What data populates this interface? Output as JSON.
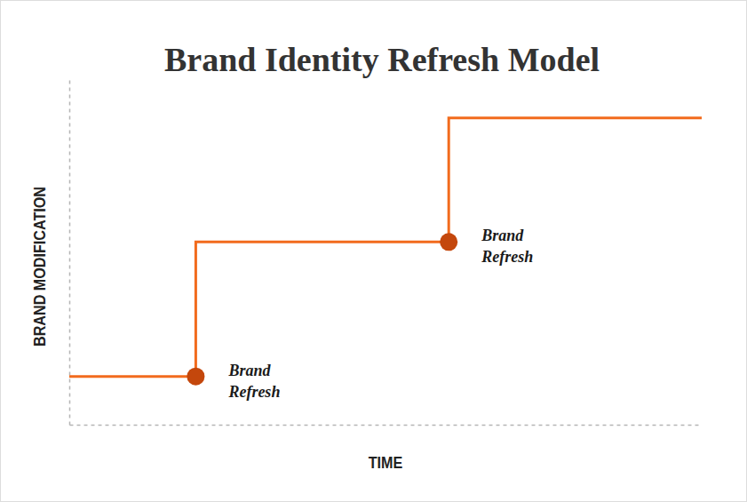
{
  "chart_data": {
    "type": "step",
    "title": "Brand Identity Refresh Model",
    "x_label": "TIME",
    "y_label": "BRAND MODIFICATION",
    "x": [
      0,
      2,
      6,
      10
    ],
    "values": [
      1.4,
      5.3,
      8.9,
      8.9
    ],
    "color": "#f26b1d",
    "xlim": [
      0,
      10
    ],
    "ylim": [
      0,
      10
    ],
    "tick_labels": false,
    "grid": false,
    "annotations": [
      {
        "text": "Brand Refresh",
        "x": 2,
        "y": 1.4
      },
      {
        "text": "Brand Refresh",
        "x": 6,
        "y": 5.3
      }
    ]
  }
}
